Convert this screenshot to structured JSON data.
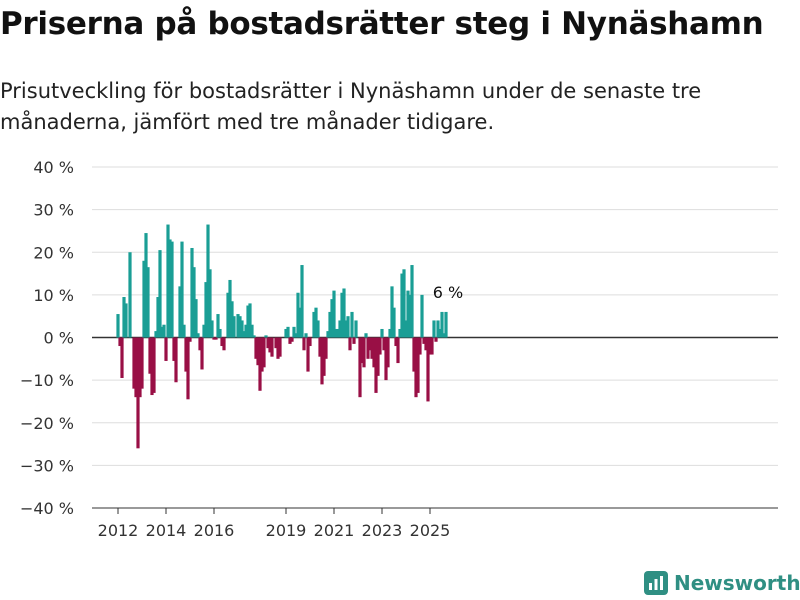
{
  "title": "Priserna på bostadsrätter steg i Nynäshamn",
  "subtitle": "Prisutveckling för bostadsrätter i Nynäshamn under de senaste tre månaderna, jämfört med tre månader tidigare.",
  "brand": "Newsworthy",
  "colors": {
    "positive": "#1a9e95",
    "negative": "#990f45",
    "grid": "#dddddd",
    "axis": "#333333"
  },
  "chart_data": {
    "type": "bar",
    "ylim": [
      -40,
      40
    ],
    "yticks": [
      -40,
      -30,
      -20,
      -10,
      0,
      10,
      20,
      30,
      40
    ],
    "ytick_labels": [
      "−40 %",
      "−30 %",
      "−20 %",
      "−10 %",
      "0 %",
      "10 %",
      "20 %",
      "30 %",
      "40 %"
    ],
    "xticks": [
      {
        "label": "2012",
        "year": 2012
      },
      {
        "label": "2014",
        "year": 2014
      },
      {
        "label": "2016",
        "year": 2016
      },
      {
        "label": "2019",
        "year": 2019
      },
      {
        "label": "2021",
        "year": 2021
      },
      {
        "label": "2023",
        "year": 2023
      },
      {
        "label": "2025",
        "year": 2025
      }
    ],
    "start": "2012-01",
    "annotation": {
      "text": "6 %",
      "value": 6
    },
    "values": [
      5.5,
      -2,
      -9.5,
      9.5,
      8,
      0,
      20,
      0,
      -12,
      -14,
      -26,
      -14,
      -12,
      18,
      24.5,
      16.5,
      -8.5,
      -13.5,
      -13,
      1.5,
      9.5,
      20.5,
      2.5,
      3,
      -5.5,
      26.5,
      23,
      22.5,
      -5.5,
      -10.5,
      0,
      12,
      22.5,
      3,
      -8,
      -14.5,
      -1,
      21,
      16.5,
      9,
      1,
      -3,
      -7.5,
      3,
      13,
      26.5,
      16,
      4,
      -0.5,
      -0.5,
      5.5,
      2,
      -2,
      -3,
      0,
      10.5,
      13.5,
      8.5,
      5,
      0,
      5.5,
      5,
      4,
      1.5,
      3,
      7.5,
      8,
      3,
      0.5,
      -5,
      -6.5,
      -12.5,
      -8,
      -7,
      0.5,
      -2.5,
      -3.5,
      -4.5,
      0,
      -2.5,
      -5,
      -4.5,
      0,
      0,
      2,
      2.5,
      -1.5,
      -1,
      2.5,
      1,
      10.5,
      7,
      17,
      -3,
      1,
      -8,
      -2,
      0,
      6,
      7,
      4,
      -4.5,
      -11,
      -9,
      -5,
      1.5,
      6,
      9,
      11,
      2,
      2,
      4,
      10.5,
      11.5,
      4,
      5,
      -3,
      6,
      -1.5,
      4,
      0,
      -14,
      -6,
      -7,
      1,
      -5,
      -3,
      -5,
      -7,
      -13,
      -9,
      -4,
      2,
      -3,
      -10,
      -7,
      2,
      12,
      7,
      -2,
      -6,
      2,
      15,
      16,
      4,
      11,
      10,
      17,
      -8,
      -14,
      -13,
      -4,
      10,
      -1.5,
      -3,
      -15,
      -4,
      -4,
      4,
      -1,
      4,
      2,
      6,
      1,
      6
    ]
  }
}
